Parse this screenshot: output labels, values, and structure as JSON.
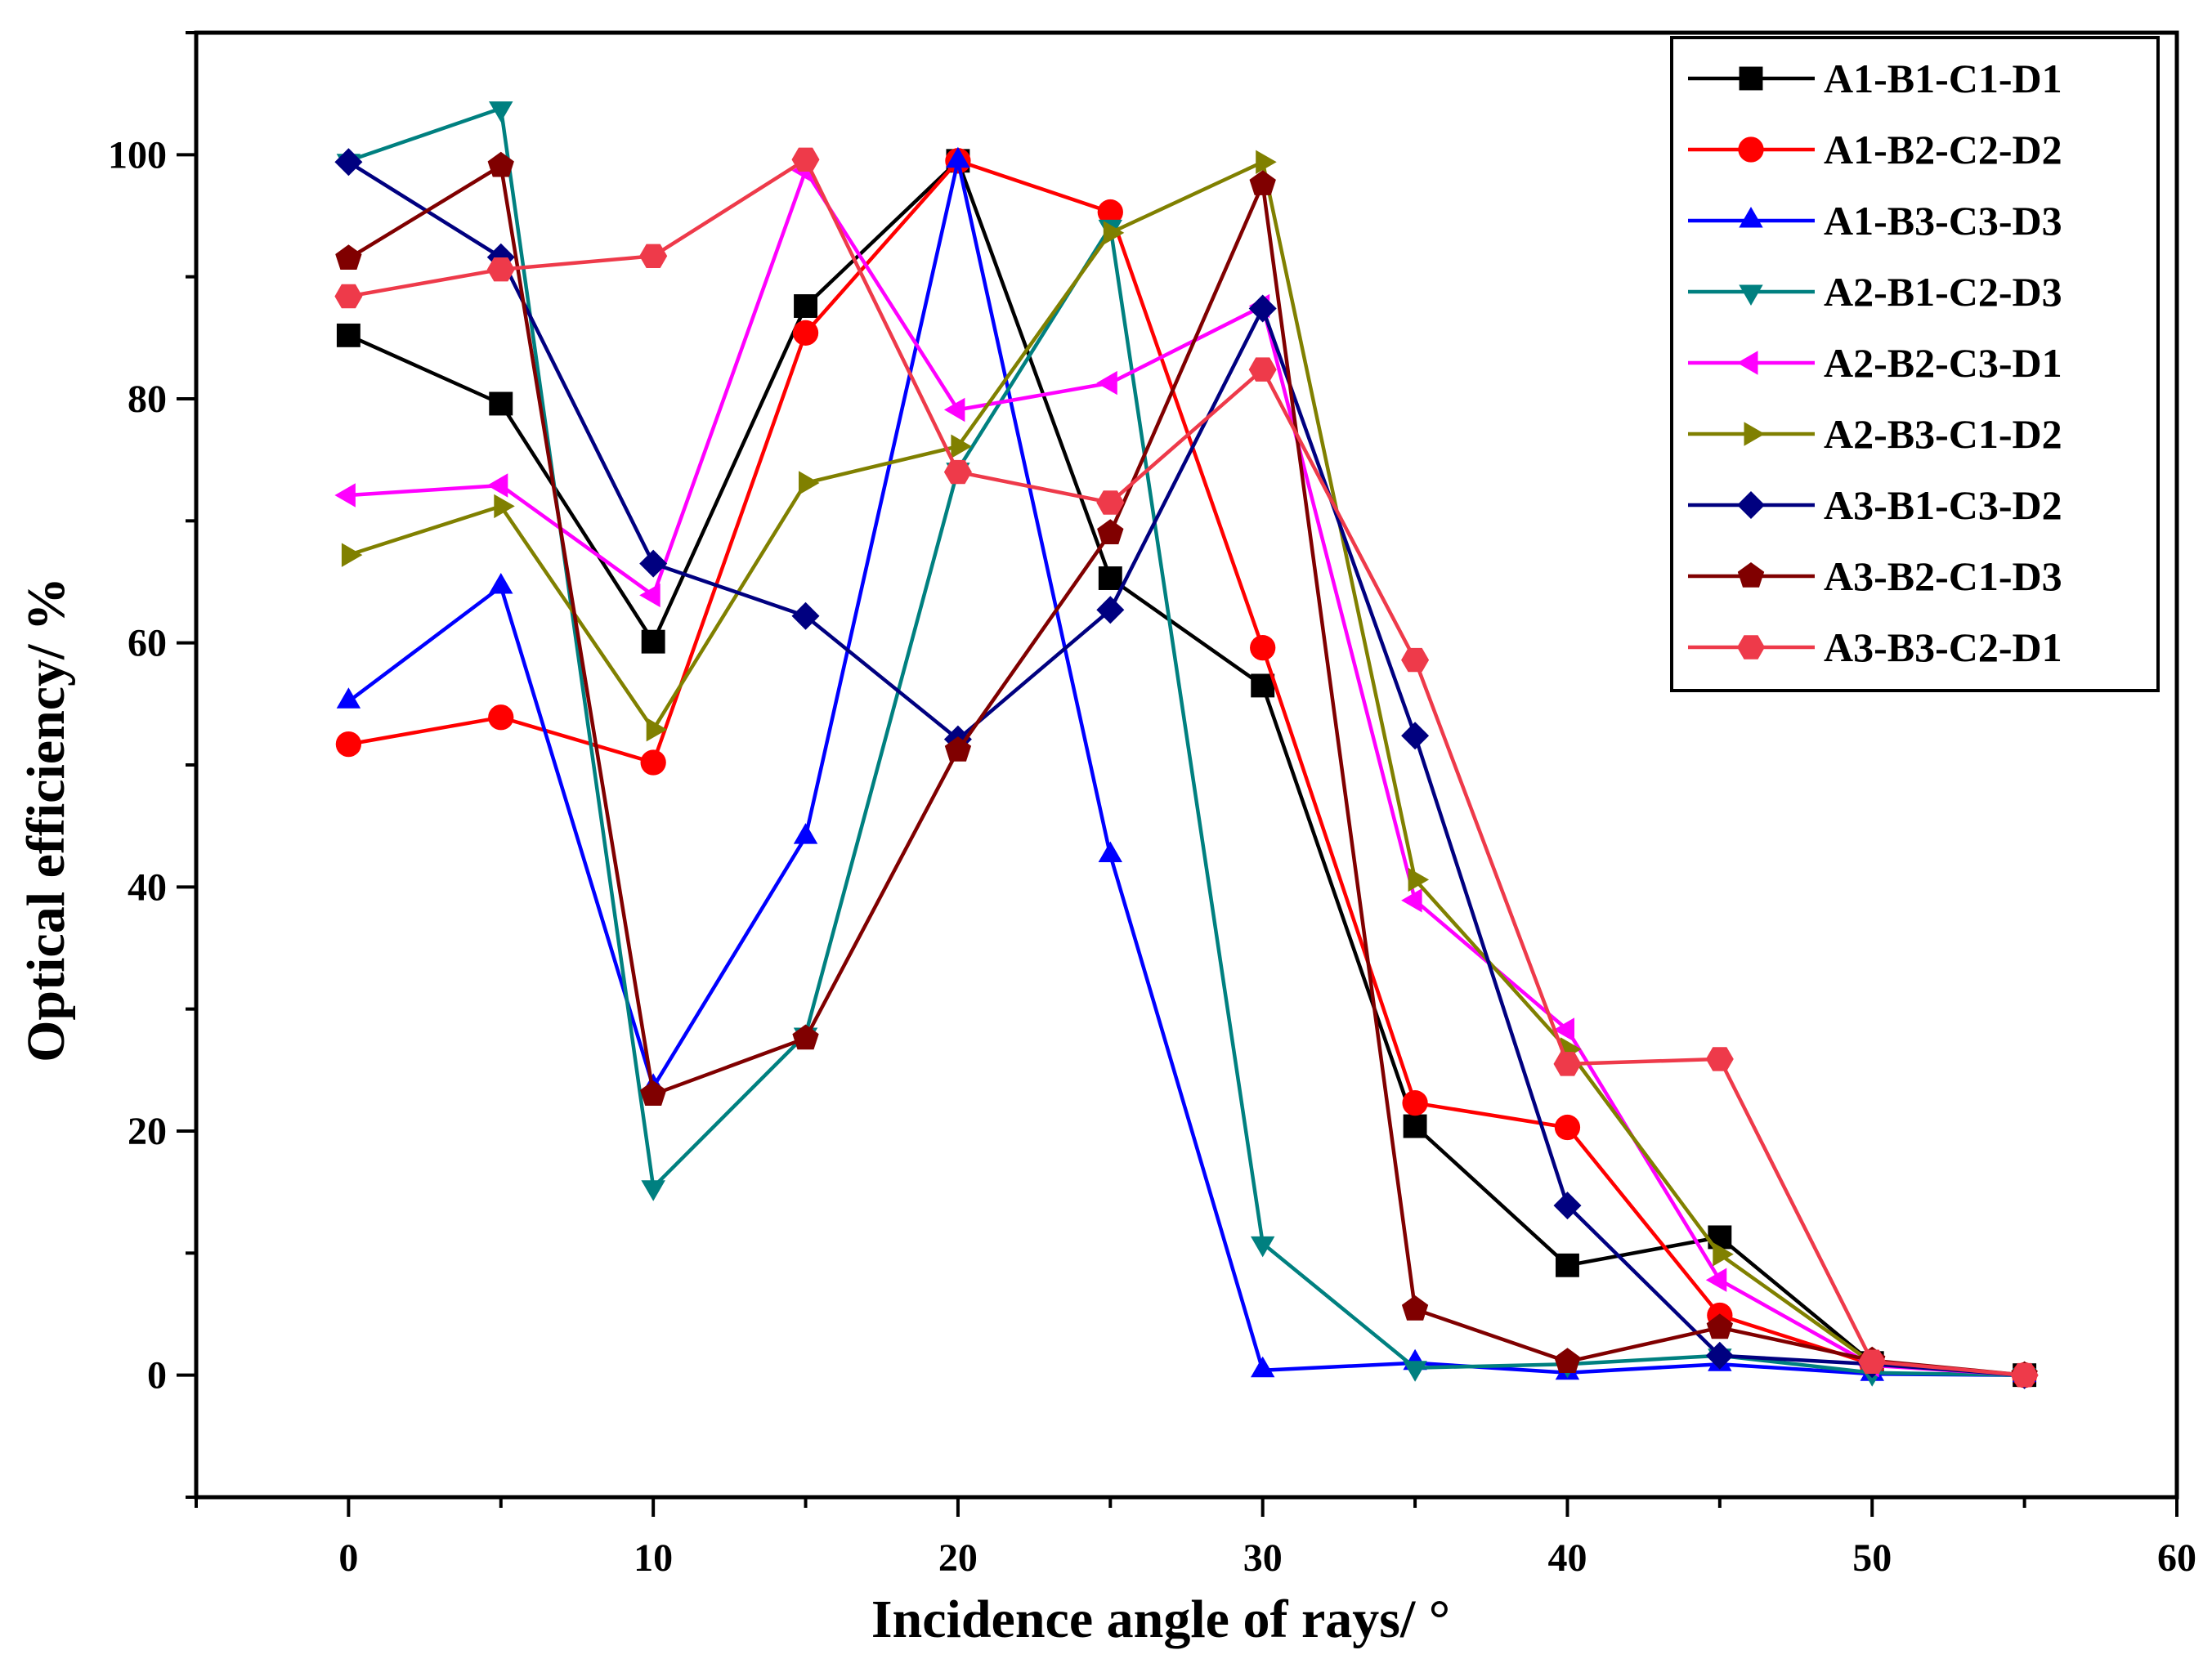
{
  "chart_data": {
    "type": "line",
    "title": "",
    "xlabel": "Incidence angle of rays/ °",
    "ylabel": "Optical efficiency/ %",
    "xlim": [
      -5,
      60
    ],
    "ylim": [
      -10,
      110
    ],
    "xticks": [
      0,
      10,
      20,
      30,
      40,
      50,
      60
    ],
    "yticks": [
      0,
      20,
      40,
      60,
      80,
      100
    ],
    "x_minor_step": 5,
    "y_minor_step": 10,
    "grid": false,
    "legend_position": "top-right",
    "x": [
      0,
      5,
      10,
      15,
      20,
      25,
      30,
      35,
      40,
      45,
      50,
      55
    ],
    "series": [
      {
        "name": "A1-B1-C1-D1",
        "color": "#000000",
        "marker": "square",
        "values": [
          85.2,
          79.6,
          60.1,
          87.6,
          99.5,
          65.3,
          56.5,
          20.4,
          9.0,
          11.3,
          1.0,
          0
        ]
      },
      {
        "name": "A1-B2-C2-D2",
        "color": "#ff0000",
        "marker": "circle",
        "values": [
          51.7,
          53.9,
          50.2,
          85.4,
          99.5,
          95.3,
          59.6,
          22.3,
          20.3,
          4.9,
          0.9,
          0
        ]
      },
      {
        "name": "A1-B3-C3-D3",
        "color": "#0000ff",
        "marker": "triangle-up",
        "values": [
          55.2,
          64.6,
          23.6,
          44.1,
          99.5,
          42.6,
          0.4,
          1.0,
          0.2,
          0.9,
          0.1,
          0
        ]
      },
      {
        "name": "A2-B1-C2-D3",
        "color": "#008080",
        "marker": "triangle-down",
        "values": [
          99.5,
          103.8,
          15.4,
          27.9,
          74.2,
          94.1,
          10.8,
          0.6,
          0.9,
          1.6,
          0.2,
          0
        ]
      },
      {
        "name": "A2-B2-C3-D1",
        "color": "#ff00ff",
        "marker": "triangle-left",
        "values": [
          72.1,
          72.9,
          63.9,
          98.7,
          79.1,
          81.3,
          87.6,
          38.9,
          28.3,
          7.8,
          0.8,
          0
        ]
      },
      {
        "name": "A2-B3-C1-D2",
        "color": "#808000",
        "marker": "triangle-right",
        "values": [
          67.2,
          71.2,
          52.9,
          73.1,
          76.1,
          93.6,
          99.4,
          40.6,
          26.7,
          9.9,
          1.0,
          0
        ]
      },
      {
        "name": "A3-B1-C3-D2",
        "color": "#000080",
        "marker": "diamond",
        "values": [
          99.4,
          91.6,
          66.5,
          62.2,
          52.1,
          62.7,
          87.4,
          52.4,
          13.9,
          1.6,
          0.9,
          0
        ]
      },
      {
        "name": "A3-B2-C1-D3",
        "color": "#800000",
        "marker": "pentagon",
        "values": [
          91.5,
          99.1,
          23.0,
          27.6,
          51.2,
          69.0,
          97.6,
          5.4,
          1.1,
          3.9,
          1.2,
          0
        ]
      },
      {
        "name": "A3-B3-C2-D1",
        "color": "#ee3a4a",
        "marker": "hexagon",
        "values": [
          88.4,
          90.6,
          91.7,
          99.6,
          74.0,
          71.5,
          82.4,
          58.6,
          25.5,
          25.9,
          1.1,
          0
        ]
      }
    ]
  }
}
